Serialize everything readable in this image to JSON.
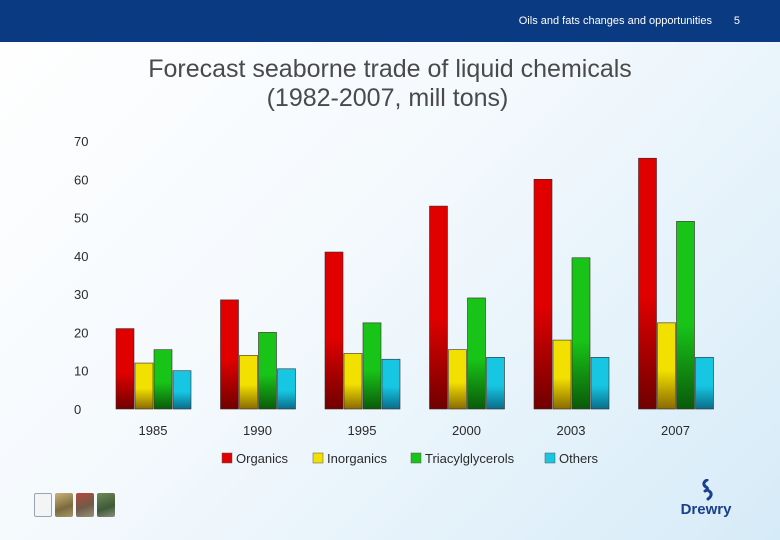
{
  "header": {
    "title": "Oils and fats changes and opportunities",
    "page_number": "5"
  },
  "slide": {
    "title_line1": "Forecast seaborne trade of liquid chemicals",
    "title_line2": "(1982-2007, mill tons)"
  },
  "colors": {
    "header_bg": "#0a3a82",
    "Organics": "#e00000",
    "Inorganics": "#f2e000",
    "Triacylglycerols": "#18c418",
    "Others": "#16c6e2"
  },
  "chart_data": {
    "type": "bar",
    "title": "Forecast seaborne trade of liquid chemicals (1982-2007, mill tons)",
    "xlabel": "",
    "ylabel": "",
    "ylim": [
      0,
      70
    ],
    "yticks": [
      "0",
      "10",
      "20",
      "30",
      "40",
      "50",
      "60",
      "70"
    ],
    "categories": [
      "1985",
      "1990",
      "1995",
      "2000",
      "2003",
      "2007"
    ],
    "series": [
      {
        "name": "Organics",
        "values": [
          21,
          28.5,
          41,
          53,
          60,
          65.5
        ]
      },
      {
        "name": "Inorganics",
        "values": [
          12,
          14,
          14.5,
          15.5,
          18,
          22.5
        ]
      },
      {
        "name": "Triacylglycerols",
        "values": [
          15.5,
          20,
          22.5,
          29,
          39.5,
          49
        ]
      },
      {
        "name": "Others",
        "values": [
          10,
          10.5,
          13,
          13.5,
          13.5,
          13.5
        ]
      }
    ],
    "legend_position": "bottom"
  },
  "logo": {
    "text": "Drewry"
  }
}
